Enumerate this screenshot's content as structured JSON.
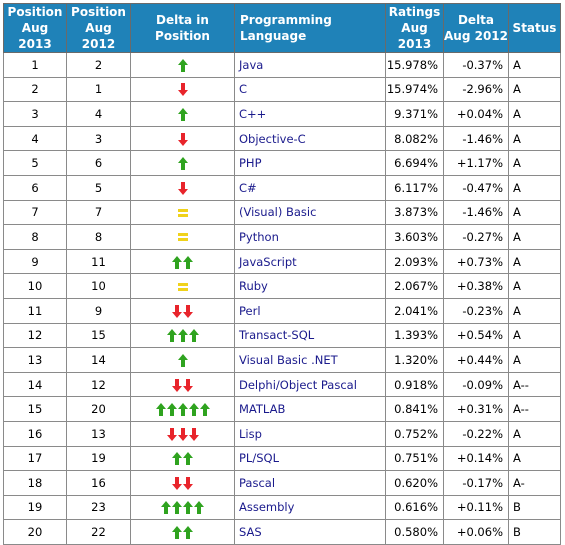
{
  "headers": {
    "pos2013": "Position Aug 2013",
    "pos2013_l1": "Position",
    "pos2013_l2": "Aug 2013",
    "pos2012_l1": "Position",
    "pos2012_l2": "Aug 2012",
    "delta": "Delta in Position",
    "language": "Programming Language",
    "ratings_l1": "Ratings",
    "ratings_l2": "Aug 2013",
    "delta2_l1": "Delta",
    "delta2_l2": "Aug 2012",
    "status": "Status"
  },
  "colors": {
    "header_bg": "#1f82b8",
    "up_arrow": "#2fa31f",
    "down_arrow": "#e8242b",
    "equal_sign": "#f0d21a",
    "language_link": "#1a1a8c"
  },
  "rows": [
    {
      "pos2013": "1",
      "pos2012": "2",
      "delta_dir": "up",
      "delta_count": 1,
      "language": "Java",
      "rating": "15.978%",
      "delta": "-0.37%",
      "status": "A"
    },
    {
      "pos2013": "2",
      "pos2012": "1",
      "delta_dir": "down",
      "delta_count": 1,
      "language": "C",
      "rating": "15.974%",
      "delta": "-2.96%",
      "status": "A"
    },
    {
      "pos2013": "3",
      "pos2012": "4",
      "delta_dir": "up",
      "delta_count": 1,
      "language": "C++",
      "rating": "9.371%",
      "delta": "+0.04%",
      "status": "A"
    },
    {
      "pos2013": "4",
      "pos2012": "3",
      "delta_dir": "down",
      "delta_count": 1,
      "language": "Objective-C",
      "rating": "8.082%",
      "delta": "-1.46%",
      "status": "A"
    },
    {
      "pos2013": "5",
      "pos2012": "6",
      "delta_dir": "up",
      "delta_count": 1,
      "language": "PHP",
      "rating": "6.694%",
      "delta": "+1.17%",
      "status": "A"
    },
    {
      "pos2013": "6",
      "pos2012": "5",
      "delta_dir": "down",
      "delta_count": 1,
      "language": "C#",
      "rating": "6.117%",
      "delta": "-0.47%",
      "status": "A"
    },
    {
      "pos2013": "7",
      "pos2012": "7",
      "delta_dir": "equal",
      "delta_count": 1,
      "language": "(Visual) Basic",
      "rating": "3.873%",
      "delta": "-1.46%",
      "status": "A"
    },
    {
      "pos2013": "8",
      "pos2012": "8",
      "delta_dir": "equal",
      "delta_count": 1,
      "language": "Python",
      "rating": "3.603%",
      "delta": "-0.27%",
      "status": "A"
    },
    {
      "pos2013": "9",
      "pos2012": "11",
      "delta_dir": "up",
      "delta_count": 2,
      "language": "JavaScript",
      "rating": "2.093%",
      "delta": "+0.73%",
      "status": "A"
    },
    {
      "pos2013": "10",
      "pos2012": "10",
      "delta_dir": "equal",
      "delta_count": 1,
      "language": "Ruby",
      "rating": "2.067%",
      "delta": "+0.38%",
      "status": "A"
    },
    {
      "pos2013": "11",
      "pos2012": "9",
      "delta_dir": "down",
      "delta_count": 2,
      "language": "Perl",
      "rating": "2.041%",
      "delta": "-0.23%",
      "status": "A"
    },
    {
      "pos2013": "12",
      "pos2012": "15",
      "delta_dir": "up",
      "delta_count": 3,
      "language": "Transact-SQL",
      "rating": "1.393%",
      "delta": "+0.54%",
      "status": "A"
    },
    {
      "pos2013": "13",
      "pos2012": "14",
      "delta_dir": "up",
      "delta_count": 1,
      "language": "Visual Basic .NET",
      "rating": "1.320%",
      "delta": "+0.44%",
      "status": "A"
    },
    {
      "pos2013": "14",
      "pos2012": "12",
      "delta_dir": "down",
      "delta_count": 2,
      "language": "Delphi/Object Pascal",
      "rating": "0.918%",
      "delta": "-0.09%",
      "status": "A--"
    },
    {
      "pos2013": "15",
      "pos2012": "20",
      "delta_dir": "up",
      "delta_count": 5,
      "language": "MATLAB",
      "rating": "0.841%",
      "delta": "+0.31%",
      "status": "A--"
    },
    {
      "pos2013": "16",
      "pos2012": "13",
      "delta_dir": "down",
      "delta_count": 3,
      "language": "Lisp",
      "rating": "0.752%",
      "delta": "-0.22%",
      "status": "A"
    },
    {
      "pos2013": "17",
      "pos2012": "19",
      "delta_dir": "up",
      "delta_count": 2,
      "language": "PL/SQL",
      "rating": "0.751%",
      "delta": "+0.14%",
      "status": "A"
    },
    {
      "pos2013": "18",
      "pos2012": "16",
      "delta_dir": "down",
      "delta_count": 2,
      "language": "Pascal",
      "rating": "0.620%",
      "delta": "-0.17%",
      "status": "A-"
    },
    {
      "pos2013": "19",
      "pos2012": "23",
      "delta_dir": "up",
      "delta_count": 4,
      "language": "Assembly",
      "rating": "0.616%",
      "delta": "+0.11%",
      "status": "B"
    },
    {
      "pos2013": "20",
      "pos2012": "22",
      "delta_dir": "up",
      "delta_count": 2,
      "language": "SAS",
      "rating": "0.580%",
      "delta": "+0.06%",
      "status": "B"
    }
  ]
}
